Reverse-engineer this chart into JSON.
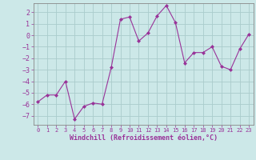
{
  "x": [
    0,
    1,
    2,
    3,
    4,
    5,
    6,
    7,
    8,
    9,
    10,
    11,
    12,
    13,
    14,
    15,
    16,
    17,
    18,
    19,
    20,
    21,
    22,
    23
  ],
  "y": [
    -5.8,
    -5.2,
    -5.2,
    -4.0,
    -7.3,
    -6.2,
    -5.9,
    -6.0,
    -2.8,
    1.4,
    1.6,
    -0.5,
    0.2,
    1.7,
    2.6,
    1.1,
    -2.4,
    -1.5,
    -1.5,
    -1.0,
    -2.7,
    -3.0,
    -1.2,
    0.1
  ],
  "line_color": "#993399",
  "marker_color": "#993399",
  "bg_color": "#cce8e8",
  "grid_color": "#aacccc",
  "xlabel": "Windchill (Refroidissement éolien,°C)",
  "xlabel_color": "#993399",
  "tick_color": "#993399",
  "ylim": [
    -7.8,
    2.8
  ],
  "xlim": [
    -0.5,
    23.5
  ],
  "yticks": [
    -7,
    -6,
    -5,
    -4,
    -3,
    -2,
    -1,
    0,
    1,
    2
  ],
  "xticks": [
    0,
    1,
    2,
    3,
    4,
    5,
    6,
    7,
    8,
    9,
    10,
    11,
    12,
    13,
    14,
    15,
    16,
    17,
    18,
    19,
    20,
    21,
    22,
    23
  ]
}
